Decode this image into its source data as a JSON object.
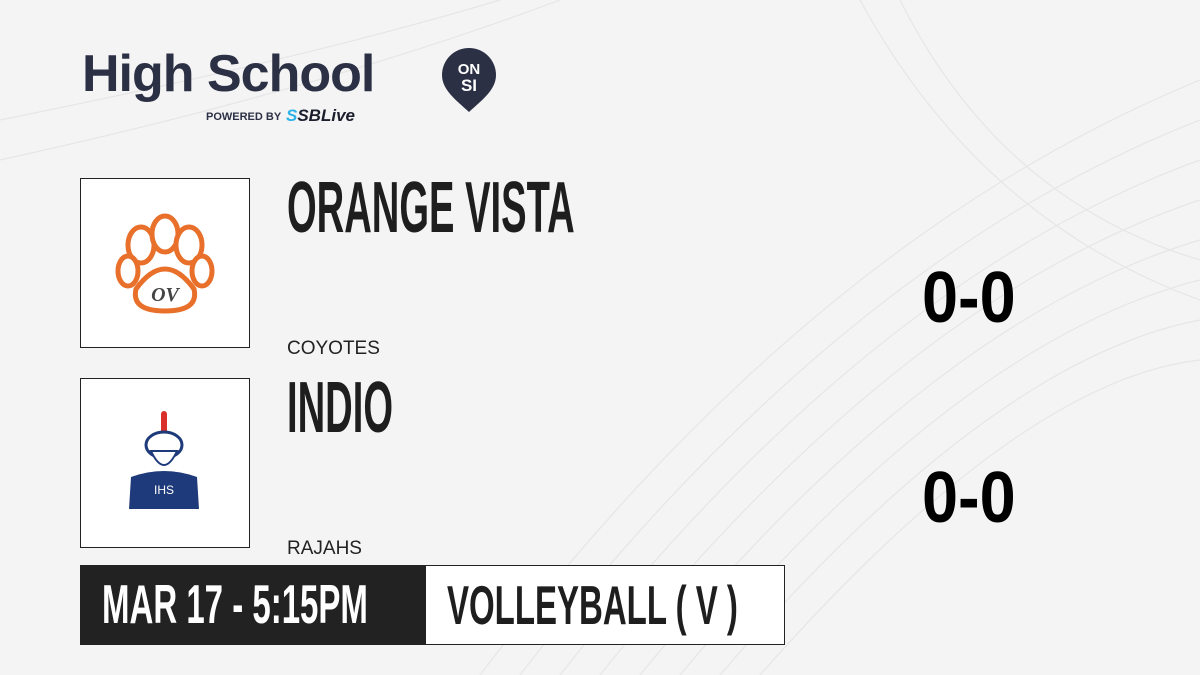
{
  "brand": {
    "title": "High School",
    "badge_top": "ON",
    "badge_bottom": "SI",
    "powered_by": "POWERED BY",
    "partner_prefix": "S",
    "partner": "SBLive"
  },
  "teams": [
    {
      "name": "ORANGE VISTA",
      "mascot": "COYOTES",
      "score": "0-0",
      "logo": "paw-logo",
      "logo_color": "#e8702a"
    },
    {
      "name": "INDIO",
      "mascot": "RAJAHS",
      "score": "0-0",
      "logo": "rajah-logo",
      "logo_color": "#1f3a7a"
    }
  ],
  "game": {
    "datetime": "MAR 17 - 5:15PM",
    "sport": "VOLLEYBALL ( V )"
  },
  "colors": {
    "brand_navy": "#2b3044",
    "partner_blue": "#2bb3e8",
    "dark": "#222222"
  }
}
